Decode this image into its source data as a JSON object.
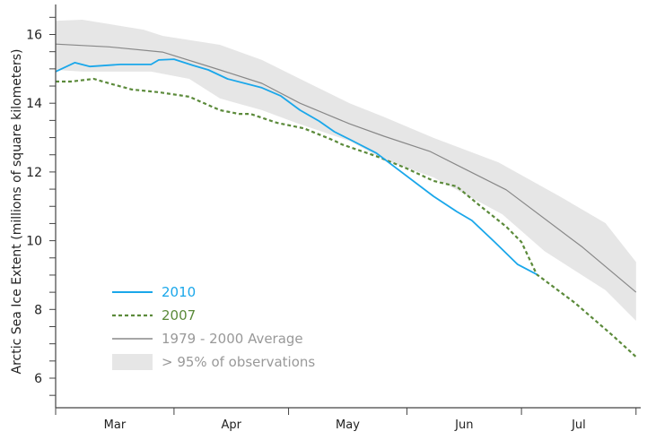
{
  "chart_data": {
    "type": "line",
    "title": "",
    "xlabel": "",
    "ylabel": "Arctic Sea Ice Extent  (millions of square kilometers)",
    "ylim": [
      5.1,
      16.9
    ],
    "xlim": [
      "Mar 1",
      "Jul 31"
    ],
    "yticks": [
      "6",
      "8",
      "10",
      "12",
      "14",
      "16"
    ],
    "xticks": [
      "Mar",
      "Apr",
      "May",
      "Jun",
      "Jul"
    ],
    "grid": false,
    "legend_position": "bottom-left",
    "series": [
      {
        "name": "2010",
        "color": "#1aa7ea",
        "style": "solid",
        "points": [
          [
            "Mar 1",
            14.92
          ],
          [
            "Mar 6",
            15.18
          ],
          [
            "Mar 10",
            15.07
          ],
          [
            "Mar 18",
            15.13
          ],
          [
            "Mar 26",
            15.13
          ],
          [
            "Mar 28",
            15.26
          ],
          [
            "Apr 1",
            15.28
          ],
          [
            "Apr 6",
            15.1
          ],
          [
            "Apr 10",
            14.97
          ],
          [
            "Apr 15",
            14.71
          ],
          [
            "Apr 24",
            14.45
          ],
          [
            "Apr 29",
            14.21
          ],
          [
            "May 4",
            13.8
          ],
          [
            "May 9",
            13.48
          ],
          [
            "May 13",
            13.17
          ],
          [
            "May 17",
            12.95
          ],
          [
            "May 24",
            12.55
          ],
          [
            "Jun 8",
            11.29
          ],
          [
            "Jun 14",
            10.85
          ],
          [
            "Jun 18",
            10.59
          ],
          [
            "Jun 24",
            9.96
          ],
          [
            "Jun 30",
            9.31
          ],
          [
            "Jul 5",
            9.02
          ]
        ]
      },
      {
        "name": "2007",
        "color": "#5b8a3a",
        "style": "dashed",
        "points": [
          [
            "Mar 1",
            14.63
          ],
          [
            "Mar 5",
            14.63
          ],
          [
            "Mar 11",
            14.71
          ],
          [
            "Mar 15",
            14.58
          ],
          [
            "Mar 21",
            14.4
          ],
          [
            "Mar 28",
            14.32
          ],
          [
            "Apr 5",
            14.19
          ],
          [
            "Apr 13",
            13.8
          ],
          [
            "Apr 18",
            13.69
          ],
          [
            "Apr 21",
            13.69
          ],
          [
            "Apr 28",
            13.43
          ],
          [
            "May 5",
            13.27
          ],
          [
            "May 13",
            12.91
          ],
          [
            "May 15",
            12.8
          ],
          [
            "May 24",
            12.46
          ],
          [
            "Jun 1",
            12.1
          ],
          [
            "Jun 8",
            11.74
          ],
          [
            "Jun 14",
            11.58
          ],
          [
            "Jun 20",
            11.03
          ],
          [
            "Jun 27",
            10.41
          ],
          [
            "Jul 1",
            9.96
          ],
          [
            "Jul 5",
            9.02
          ],
          [
            "Jul 15",
            8.19
          ],
          [
            "Jul 25",
            7.23
          ],
          [
            "Jul 31",
            6.62
          ]
        ]
      },
      {
        "name": "1979 - 2000 Average",
        "color": "#888888",
        "style": "solid",
        "points": [
          [
            "Mar 1",
            15.72
          ],
          [
            "Mar 15",
            15.64
          ],
          [
            "Mar 29",
            15.49
          ],
          [
            "Apr 13",
            14.97
          ],
          [
            "Apr 24",
            14.58
          ],
          [
            "May 4",
            14.0
          ],
          [
            "May 17",
            13.4
          ],
          [
            "May 26",
            13.04
          ],
          [
            "Jun 7",
            12.6
          ],
          [
            "Jun 27",
            11.48
          ],
          [
            "Jul 17",
            9.81
          ],
          [
            "Jul 31",
            8.5
          ]
        ]
      }
    ],
    "band": {
      "name": "> 95% of observations",
      "color": "#e6e6e6",
      "upper": [
        [
          "Mar 1",
          16.4
        ],
        [
          "Mar 8",
          16.43
        ],
        [
          "Mar 24",
          16.14
        ],
        [
          "Mar 29",
          15.96
        ],
        [
          "Apr 13",
          15.7
        ],
        [
          "Apr 24",
          15.26
        ],
        [
          "May 4",
          14.71
        ],
        [
          "May 17",
          14.0
        ],
        [
          "May 26",
          13.6
        ],
        [
          "Jun 8",
          12.99
        ],
        [
          "Jun 25",
          12.28
        ],
        [
          "Jul 11",
          11.29
        ],
        [
          "Jul 23",
          10.51
        ],
        [
          "Jul 31",
          9.38
        ]
      ],
      "lower": [
        [
          "Mar 1",
          14.97
        ],
        [
          "Mar 8",
          14.92
        ],
        [
          "Mar 26",
          14.92
        ],
        [
          "Apr 5",
          14.71
        ],
        [
          "Apr 13",
          14.14
        ],
        [
          "Apr 24",
          13.8
        ],
        [
          "May 3",
          13.43
        ],
        [
          "May 17",
          12.9
        ],
        [
          "May 26",
          12.36
        ],
        [
          "Jun 8",
          11.84
        ],
        [
          "Jun 26",
          10.77
        ],
        [
          "Jul 7",
          9.7
        ],
        [
          "Jul 23",
          8.56
        ],
        [
          "Jul 31",
          7.67
        ]
      ]
    }
  }
}
